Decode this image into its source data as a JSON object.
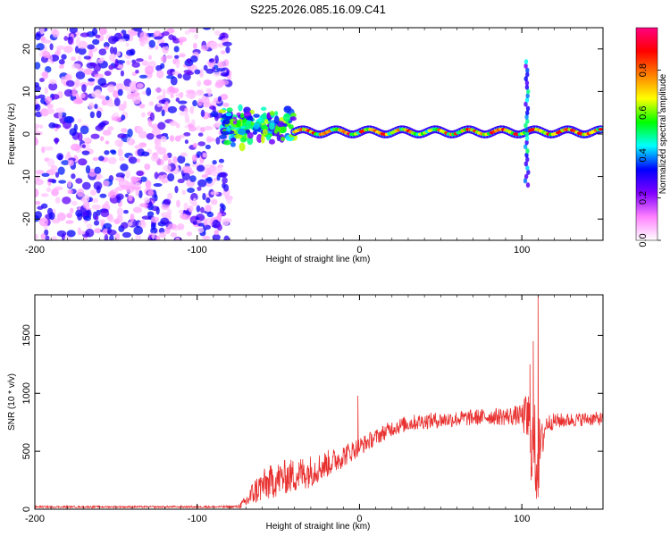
{
  "title": "S225.2026.085.16.09.C41",
  "chart_data": [
    {
      "type": "heatmap",
      "name": "spectrogram",
      "xlabel": "Height of straight line (km)",
      "ylabel": "Frequency (Hz)",
      "xlim": [
        -200,
        150
      ],
      "ylim": [
        -25,
        25
      ],
      "xticks": [
        -200,
        -100,
        0,
        100
      ],
      "yticks": [
        -20,
        -10,
        0,
        10,
        20
      ],
      "colorbar": {
        "label": "Normalized spectral amplitude",
        "range": [
          0,
          1
        ],
        "ticks": [
          "0.0",
          "0.2",
          "0.4",
          "0.6",
          "0.8"
        ],
        "colors": [
          "#ffffff",
          "#ff80ff",
          "#8000ff",
          "#0000ff",
          "#00ffff",
          "#00ff00",
          "#ffff00",
          "#ff8000",
          "#ff0000",
          "#ff0080"
        ]
      },
      "features": [
        {
          "kind": "noise",
          "x_range": [
            -200,
            -80
          ],
          "freq_range": [
            -25,
            25
          ],
          "amplitude": 0.25
        },
        {
          "kind": "onset",
          "x_range": [
            -85,
            -40
          ],
          "freq_center": 2,
          "freq_spread": 6,
          "amplitude": 0.5
        },
        {
          "kind": "carrier",
          "x_range": [
            -40,
            150
          ],
          "freq_center": 0.5,
          "amplitude": 0.85
        },
        {
          "kind": "spike",
          "x_center": 103,
          "freq_range": [
            -12,
            18
          ],
          "amplitude": 0.4
        }
      ]
    },
    {
      "type": "line",
      "name": "snr",
      "xlabel": "Height of straight line (km)",
      "ylabel": "SNR (10 * v/v)",
      "xlim": [
        -200,
        150
      ],
      "ylim": [
        0,
        1850
      ],
      "xticks": [
        -200,
        -100,
        0,
        100
      ],
      "yticks": [
        0,
        500,
        1000,
        1500
      ],
      "color": "#e8302f",
      "series": [
        {
          "name": "SNR",
          "x": [
            -200,
            -150,
            -100,
            -85,
            -75,
            -70,
            -65,
            -60,
            -55,
            -50,
            -45,
            -40,
            -35,
            -30,
            -25,
            -20,
            -15,
            -10,
            -5,
            0,
            5,
            10,
            15,
            20,
            25,
            30,
            40,
            50,
            60,
            70,
            80,
            90,
            100,
            104,
            106,
            108,
            110,
            112,
            115,
            120,
            130,
            140,
            150
          ],
          "mean": [
            20,
            20,
            20,
            20,
            22,
            60,
            150,
            200,
            230,
            260,
            280,
            290,
            310,
            330,
            360,
            390,
            420,
            460,
            500,
            540,
            580,
            620,
            660,
            700,
            720,
            740,
            760,
            770,
            780,
            790,
            800,
            800,
            810,
            760,
            600,
            500,
            450,
            550,
            740,
            760,
            770,
            780,
            780
          ],
          "noise": [
            8,
            8,
            8,
            10,
            12,
            60,
            120,
            140,
            150,
            150,
            150,
            150,
            150,
            140,
            130,
            120,
            110,
            100,
            90,
            80,
            75,
            70,
            70,
            70,
            70,
            70,
            70,
            70,
            70,
            70,
            70,
            80,
            90,
            300,
            400,
            420,
            400,
            200,
            80,
            70,
            60,
            60,
            60
          ]
        }
      ],
      "peaks": [
        {
          "x": -1,
          "y": 980
        },
        {
          "x": 105,
          "y": 1250
        },
        {
          "x": 107,
          "y": 1450
        },
        {
          "x": 110,
          "y": 1850
        },
        {
          "x": 109,
          "y": 90
        }
      ]
    }
  ]
}
